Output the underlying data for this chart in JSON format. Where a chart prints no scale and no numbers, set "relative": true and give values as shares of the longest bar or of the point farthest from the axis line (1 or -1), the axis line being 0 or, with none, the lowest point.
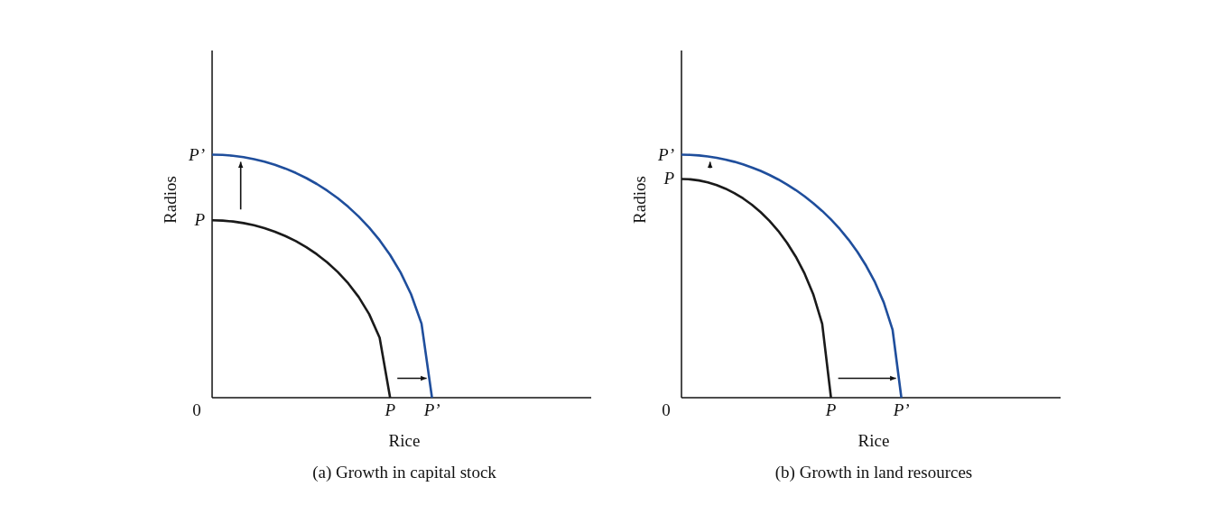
{
  "chart_data": [
    {
      "type": "line",
      "title": "(a) Growth in capital stock",
      "xlabel": "Rice",
      "ylabel": "Radios",
      "relative": true,
      "annotations": [
        "0",
        "P",
        "P’",
        "P",
        "P’"
      ],
      "categories": [
        null,
        null,
        null,
        null,
        null,
        null,
        null,
        null,
        null,
        null,
        null,
        null,
        null,
        null,
        null,
        null,
        null,
        null,
        null,
        null,
        null,
        null
      ],
      "series": [
        {
          "color": "#1a1a1a",
          "values": [
            0.73,
            0.7287,
            0.7249,
            0.7185,
            0.7095,
            0.6977,
            0.683,
            0.6652,
            0.6441,
            0.6193,
            0.5903,
            0.5566,
            0.5171,
            0.4704,
            0.4141,
            0.3436,
            0.2467,
            0,
            null,
            null,
            null,
            null
          ]
        },
        {
          "color": "#1f4e9c",
          "values": [
            1,
            0.9989,
            0.9955,
            0.9897,
            0.9817,
            0.9713,
            0.9583,
            0.9428,
            0.9246,
            0.9035,
            0.8794,
            0.8518,
            0.8207,
            0.7853,
            0.7454,
            0.6999,
            0.6477,
            0.5871,
            0.5151,
            0.4259,
            0.3049,
            0
          ]
        }
      ]
    },
    {
      "type": "line",
      "title": "(b) Growth in land resources",
      "xlabel": "Rice",
      "ylabel": "Radios",
      "relative": true,
      "annotations": [
        "0",
        "P",
        "P’",
        "P",
        "P’"
      ],
      "categories": [
        null,
        null,
        null,
        null,
        null,
        null,
        null,
        null,
        null,
        null,
        null,
        null,
        null,
        null,
        null,
        null,
        null,
        null,
        null,
        null,
        null,
        null,
        null,
        null,
        null,
        null
      ],
      "series": [
        {
          "color": "#1a1a1a",
          "values": [
            0.9,
            0.8985,
            0.8938,
            0.8859,
            0.8747,
            0.8601,
            0.842,
            0.8202,
            0.7941,
            0.7636,
            0.7278,
            0.6862,
            0.6375,
            0.58,
            0.5106,
            0.4236,
            0.3041,
            0,
            null,
            null,
            null,
            null,
            null,
            null,
            null,
            null
          ]
        },
        {
          "color": "#1f4e9c",
          "values": [
            1,
            0.9992,
            0.9968,
            0.9928,
            0.9871,
            0.9798,
            0.9708,
            0.96,
            0.9474,
            0.933,
            0.9165,
            0.898,
            0.8773,
            0.8542,
            0.8285,
            0.8,
            0.7684,
            0.7332,
            0.694,
            0.6499,
            0.6,
            0.5426,
            0.475,
            0.3919,
            0.28,
            0
          ]
        }
      ]
    }
  ]
}
